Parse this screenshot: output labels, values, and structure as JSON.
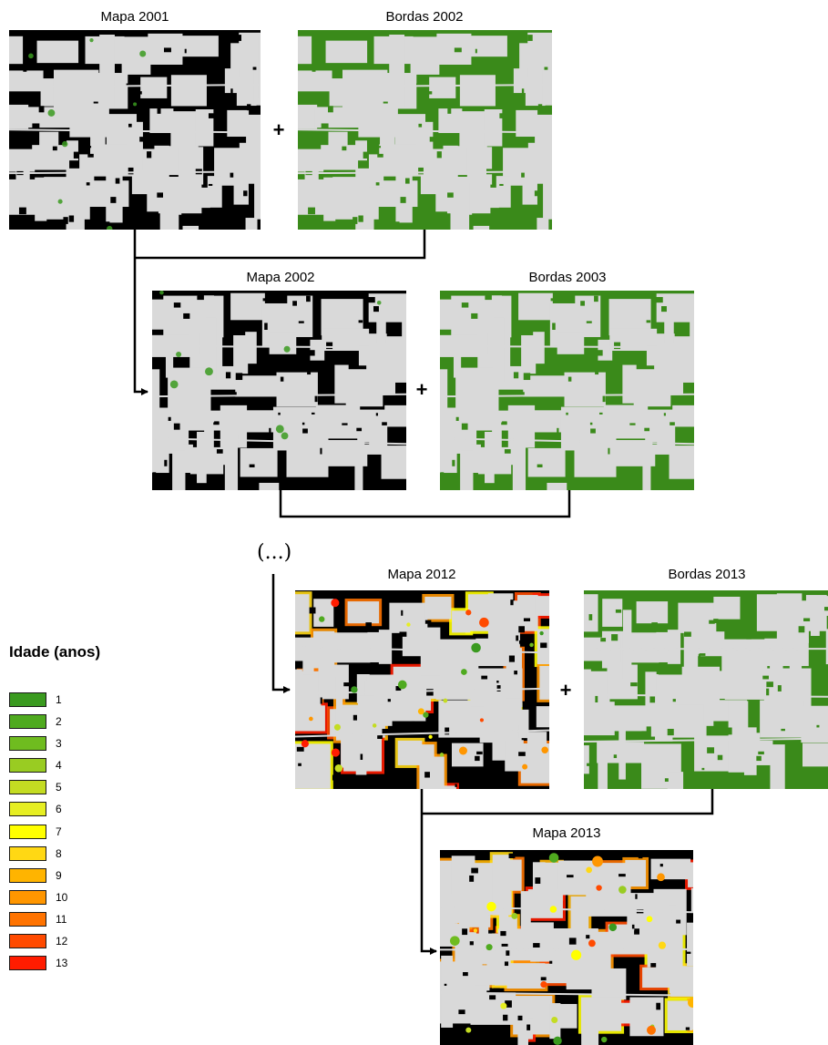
{
  "labels": {
    "mapa2001": "Mapa 2001",
    "bordas2002": "Bordas 2002",
    "mapa2002": "Mapa 2002",
    "bordas2003": "Bordas 2003",
    "mapa2012": "Mapa 2012",
    "bordas2013": "Bordas 2013",
    "mapa2013": "Mapa 2013"
  },
  "operators": {
    "plus": "+",
    "ellipsis": "(...)"
  },
  "colors": {
    "background": "#ffffff",
    "land_grey": "#d9d9d9",
    "forest_black": "#000000",
    "border_green": "#3a8a1a",
    "arrow": "#000000"
  },
  "legend": {
    "title": "Idade (anos)",
    "items": [
      {
        "label": "1",
        "color": "#3a9a1f"
      },
      {
        "label": "2",
        "color": "#4faa1f"
      },
      {
        "label": "3",
        "color": "#6fbc1f"
      },
      {
        "label": "4",
        "color": "#99cc22"
      },
      {
        "label": "5",
        "color": "#c4dc22"
      },
      {
        "label": "6",
        "color": "#e6ee22"
      },
      {
        "label": "7",
        "color": "#ffff00"
      },
      {
        "label": "8",
        "color": "#ffd814"
      },
      {
        "label": "9",
        "color": "#ffb400"
      },
      {
        "label": "10",
        "color": "#ff9600"
      },
      {
        "label": "11",
        "color": "#ff7300"
      },
      {
        "label": "12",
        "color": "#ff4a00"
      },
      {
        "label": "13",
        "color": "#ff1c00"
      }
    ]
  }
}
